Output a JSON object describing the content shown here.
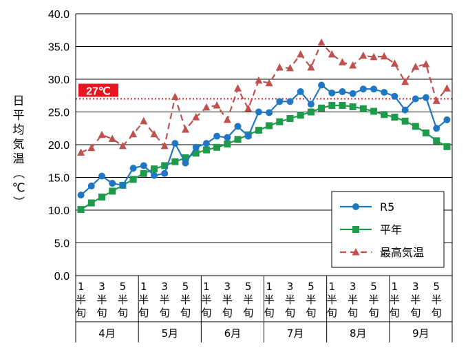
{
  "chart_data": {
    "type": "line",
    "ylabel": "日平均気温（℃）",
    "ylim": [
      0,
      40
    ],
    "yticks": [
      "0.0",
      "5.0",
      "10.0",
      "15.0",
      "20.0",
      "25.0",
      "30.0",
      "35.0",
      "40.0"
    ],
    "grid": "horizontal",
    "legend_position": "bottom-right",
    "months": [
      "4月",
      "5月",
      "6月",
      "7月",
      "8月",
      "9月"
    ],
    "sub_labels": [
      [
        "1",
        "半",
        "旬"
      ],
      [
        "3",
        "半",
        "旬"
      ],
      [
        "5",
        "半",
        "旬"
      ]
    ],
    "threshold": {
      "value": 27,
      "label": "27℃",
      "color": "#e8141e"
    },
    "x": [
      "4月1半旬",
      "4月2半旬",
      "4月3半旬",
      "4月4半旬",
      "4月5半旬",
      "4月6半旬",
      "5月1半旬",
      "5月2半旬",
      "5月3半旬",
      "5月4半旬",
      "5月5半旬",
      "5月6半旬",
      "6月1半旬",
      "6月2半旬",
      "6月3半旬",
      "6月4半旬",
      "6月5半旬",
      "6月6半旬",
      "7月1半旬",
      "7月2半旬",
      "7月3半旬",
      "7月4半旬",
      "7月5半旬",
      "7月6半旬",
      "8月1半旬",
      "8月2半旬",
      "8月3半旬",
      "8月4半旬",
      "8月5半旬",
      "8月6半旬",
      "9月1半旬",
      "9月2半旬",
      "9月3半旬",
      "9月4半旬",
      "9月5半旬",
      "9月6半旬"
    ],
    "series": [
      {
        "name": "R5",
        "color": "#1f77c4",
        "marker": "circle",
        "dash": "none",
        "values": [
          12.3,
          13.7,
          15.2,
          14.1,
          13.8,
          16.4,
          16.8,
          15.3,
          15.6,
          20.2,
          17.2,
          19.6,
          20.2,
          21.3,
          21.1,
          22.8,
          21.3,
          25.0,
          24.9,
          26.6,
          26.6,
          28.1,
          26.2,
          29.1,
          27.9,
          28.1,
          27.8,
          28.5,
          28.5,
          28.0,
          27.4,
          25.3,
          27.0,
          27.2,
          22.5,
          23.8
        ]
      },
      {
        "name": "平年",
        "color": "#1e9a4a",
        "marker": "square",
        "dash": "none",
        "values": [
          10.1,
          11.1,
          12.0,
          12.9,
          13.8,
          14.7,
          15.6,
          16.3,
          16.8,
          17.4,
          18.0,
          18.7,
          19.2,
          19.6,
          20.1,
          20.8,
          21.5,
          22.2,
          22.9,
          23.5,
          24.0,
          24.5,
          25.0,
          25.6,
          26.0,
          26.0,
          25.8,
          25.5,
          25.1,
          24.6,
          24.2,
          23.6,
          22.8,
          21.8,
          20.6,
          19.7
        ]
      },
      {
        "name": "最高気温",
        "color": "#c0504d",
        "marker": "triangle",
        "dash": "9,6",
        "values": [
          18.8,
          19.5,
          21.5,
          20.9,
          19.8,
          21.6,
          23.6,
          21.6,
          19.8,
          27.3,
          22.3,
          24.2,
          25.7,
          26.0,
          23.8,
          28.6,
          25.5,
          29.8,
          29.4,
          31.8,
          31.7,
          33.8,
          31.8,
          35.6,
          33.8,
          32.6,
          32.1,
          33.6,
          33.4,
          33.5,
          32.4,
          29.6,
          31.9,
          32.3,
          26.7,
          28.6
        ]
      }
    ]
  }
}
